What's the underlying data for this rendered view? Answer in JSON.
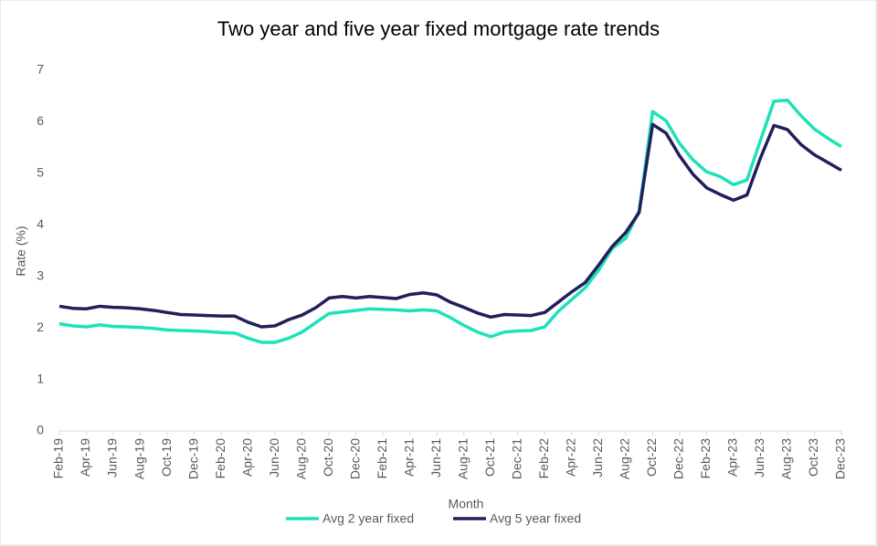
{
  "chart_data": {
    "type": "line",
    "title": "Two year and five year fixed mortgage rate trends",
    "x_label": "Month",
    "y_label": "Rate (%)",
    "categories": [
      "Feb-19",
      null,
      "Apr-19",
      null,
      "Jun-19",
      null,
      "Aug-19",
      null,
      "Oct-19",
      null,
      "Dec-19",
      null,
      "Feb-20",
      null,
      "Apr-20",
      null,
      "Jun-20",
      null,
      "Aug-20",
      null,
      "Oct-20",
      null,
      "Dec-20",
      null,
      "Feb-21",
      null,
      "Apr-21",
      null,
      "Jun-21",
      null,
      "Aug-21",
      null,
      "Oct-21",
      null,
      "Dec-21",
      null,
      "Feb-22",
      null,
      "Apr-22",
      null,
      "Jun-22",
      null,
      "Aug-22",
      null,
      "Oct-22",
      null,
      "Dec-22",
      null,
      "Feb-23",
      null,
      "Apr-23",
      null,
      "Jun-23",
      null,
      "Aug-23",
      null,
      "Oct-23",
      null,
      "Dec-23"
    ],
    "series": [
      {
        "name": "Avg 2 year fixed",
        "color": "#1de2b8",
        "values": [
          2.08,
          2.04,
          2.02,
          2.06,
          2.03,
          2.02,
          2.01,
          1.99,
          1.96,
          1.95,
          1.94,
          1.93,
          1.91,
          1.9,
          1.8,
          1.72,
          1.72,
          1.8,
          1.92,
          2.1,
          2.28,
          2.31,
          2.34,
          2.37,
          2.36,
          2.35,
          2.33,
          2.35,
          2.33,
          2.2,
          2.05,
          1.92,
          1.83,
          1.92,
          1.94,
          1.95,
          2.02,
          2.32,
          2.55,
          2.78,
          3.12,
          3.54,
          3.74,
          4.27,
          6.2,
          6.02,
          5.58,
          5.26,
          5.03,
          4.94,
          4.78,
          4.87,
          5.64,
          6.4,
          6.42,
          6.12,
          5.86,
          5.68,
          5.52
        ]
      },
      {
        "name": "Avg 5 year fixed",
        "color": "#211f5c",
        "values": [
          2.42,
          2.38,
          2.37,
          2.42,
          2.4,
          2.39,
          2.37,
          2.34,
          2.3,
          2.26,
          2.25,
          2.24,
          2.23,
          2.23,
          2.11,
          2.02,
          2.04,
          2.16,
          2.25,
          2.39,
          2.58,
          2.61,
          2.58,
          2.61,
          2.59,
          2.57,
          2.65,
          2.68,
          2.64,
          2.5,
          2.4,
          2.29,
          2.21,
          2.26,
          2.25,
          2.24,
          2.3,
          2.5,
          2.7,
          2.88,
          3.22,
          3.58,
          3.85,
          4.24,
          5.95,
          5.78,
          5.34,
          4.98,
          4.72,
          4.59,
          4.48,
          4.58,
          5.3,
          5.93,
          5.85,
          5.56,
          5.36,
          5.21,
          5.06
        ]
      }
    ],
    "ylim": [
      0,
      7
    ],
    "yticks": [
      0,
      1,
      2,
      3,
      4,
      5,
      6,
      7
    ],
    "grid": false,
    "legend": "bottom"
  }
}
